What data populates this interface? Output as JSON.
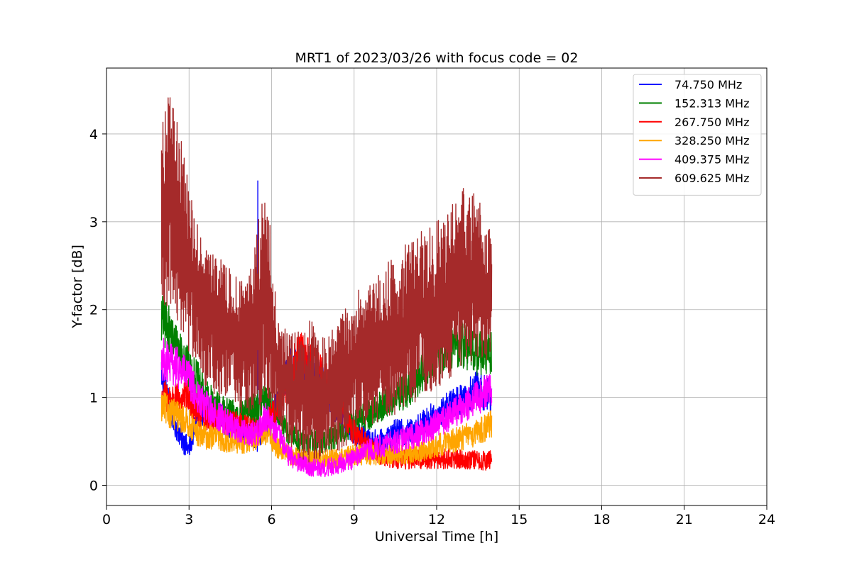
{
  "chart_data": {
    "type": "line",
    "title": "MRT1 of 2023/03/26 with focus code = 02",
    "xlabel": "Universal Time [h]",
    "ylabel": "Y-factor [dB]",
    "xlim": [
      0,
      24
    ],
    "ylim": [
      -0.23,
      4.75
    ],
    "xticks": [
      0,
      3,
      6,
      9,
      12,
      15,
      18,
      21,
      24
    ],
    "yticks": [
      0,
      1,
      2,
      3,
      4
    ],
    "grid": true,
    "legend_position": "top-right",
    "series": [
      {
        "name": " 74.750 MHz",
        "color": "#0000ff",
        "x": [
          2.0,
          2.2,
          2.5,
          2.8,
          3.0,
          3.3,
          3.6,
          4.0,
          4.5,
          5.0,
          5.5,
          5.8,
          6.2,
          6.6,
          7.0,
          7.5,
          8.0,
          8.5,
          9.0,
          9.5,
          10.0,
          10.5,
          11.0,
          11.5,
          12.0,
          12.5,
          13.0,
          13.5,
          14.0
        ],
        "y": [
          1.3,
          1.0,
          0.7,
          0.5,
          0.4,
          0.8,
          0.9,
          0.8,
          0.7,
          0.6,
          0.5,
          0.7,
          0.9,
          1.3,
          1.4,
          1.3,
          1.1,
          0.8,
          0.6,
          0.5,
          0.5,
          0.6,
          0.6,
          0.7,
          0.8,
          0.9,
          1.0,
          1.1,
          1.0
        ],
        "peak_x": 5.5,
        "peak_y": 3.47
      },
      {
        "name": "152.313 MHz",
        "color": "#008000",
        "x": [
          2.0,
          2.2,
          2.5,
          2.8,
          3.0,
          3.3,
          3.6,
          4.0,
          4.5,
          5.0,
          5.5,
          5.8,
          6.2,
          6.6,
          7.0,
          7.5,
          8.0,
          8.5,
          9.0,
          9.5,
          10.0,
          10.5,
          11.0,
          11.5,
          12.0,
          12.5,
          13.0,
          13.5,
          14.0
        ],
        "y": [
          1.9,
          1.8,
          1.6,
          1.5,
          1.3,
          1.2,
          1.0,
          0.9,
          0.8,
          0.8,
          0.9,
          1.0,
          0.8,
          0.6,
          0.5,
          0.5,
          0.5,
          0.6,
          0.7,
          0.8,
          0.9,
          1.0,
          1.1,
          1.3,
          1.5,
          1.6,
          1.6,
          1.5,
          1.5
        ]
      },
      {
        "name": "267.750 MHz",
        "color": "#ff0000",
        "x": [
          2.0,
          2.2,
          2.5,
          2.8,
          3.0,
          3.3,
          3.6,
          4.0,
          4.5,
          5.0,
          5.5,
          5.8,
          6.2,
          6.6,
          7.0,
          7.5,
          8.0,
          8.5,
          9.0,
          9.5,
          10.0,
          10.5,
          11.0,
          11.5,
          12.0,
          12.5,
          13.0,
          13.5,
          14.0
        ],
        "y": [
          1.0,
          1.0,
          0.95,
          1.0,
          1.0,
          0.85,
          0.8,
          0.75,
          0.7,
          0.65,
          0.6,
          0.7,
          0.9,
          1.2,
          1.5,
          1.4,
          1.2,
          0.9,
          0.6,
          0.45,
          0.35,
          0.3,
          0.3,
          0.3,
          0.3,
          0.3,
          0.3,
          0.28,
          0.28
        ]
      },
      {
        "name": "328.250 MHz",
        "color": "#ffa500",
        "x": [
          2.0,
          2.2,
          2.5,
          2.8,
          3.0,
          3.3,
          3.6,
          4.0,
          4.5,
          5.0,
          5.5,
          5.8,
          6.2,
          6.6,
          7.0,
          7.5,
          8.0,
          8.5,
          9.0,
          9.5,
          10.0,
          10.5,
          11.0,
          11.5,
          12.0,
          12.5,
          13.0,
          13.5,
          14.0
        ],
        "y": [
          0.9,
          0.85,
          0.8,
          0.75,
          0.7,
          0.6,
          0.55,
          0.55,
          0.5,
          0.5,
          0.55,
          0.6,
          0.45,
          0.35,
          0.3,
          0.3,
          0.3,
          0.3,
          0.35,
          0.35,
          0.35,
          0.35,
          0.35,
          0.4,
          0.45,
          0.5,
          0.55,
          0.6,
          0.7
        ]
      },
      {
        "name": "409.375 MHz",
        "color": "#ff00ff",
        "x": [
          2.0,
          2.2,
          2.5,
          2.8,
          3.0,
          3.3,
          3.6,
          4.0,
          4.5,
          5.0,
          5.5,
          5.8,
          6.2,
          6.6,
          7.0,
          7.5,
          8.0,
          8.5,
          9.0,
          9.5,
          10.0,
          10.5,
          11.0,
          11.5,
          12.0,
          12.5,
          13.0,
          13.5,
          14.0
        ],
        "y": [
          1.45,
          1.4,
          1.35,
          1.3,
          1.2,
          1.0,
          0.9,
          0.8,
          0.7,
          0.6,
          0.6,
          0.8,
          0.6,
          0.35,
          0.25,
          0.2,
          0.2,
          0.25,
          0.3,
          0.4,
          0.45,
          0.5,
          0.55,
          0.6,
          0.7,
          0.8,
          0.9,
          1.0,
          1.1
        ]
      },
      {
        "name": "609.625 MHz",
        "color": "#a52a2a",
        "x": [
          2.0,
          2.2,
          2.5,
          2.8,
          3.0,
          3.3,
          3.6,
          4.0,
          4.5,
          5.0,
          5.5,
          5.8,
          6.2,
          6.6,
          7.0,
          7.5,
          8.0,
          8.5,
          9.0,
          9.5,
          10.0,
          10.5,
          11.0,
          11.5,
          12.0,
          12.5,
          13.0,
          13.5,
          14.0
        ],
        "y": [
          3.1,
          3.2,
          3.1,
          2.8,
          2.5,
          2.2,
          2.0,
          1.8,
          1.6,
          1.5,
          1.6,
          1.9,
          1.3,
          1.0,
          0.9,
          0.9,
          0.9,
          1.0,
          1.2,
          1.3,
          1.4,
          1.5,
          1.6,
          1.7,
          1.8,
          1.9,
          2.0,
          2.0,
          2.0
        ],
        "envelope_top": [
          4.2,
          4.5,
          4.3,
          3.8,
          3.4,
          3.0,
          2.8,
          2.6,
          2.5,
          2.3,
          3.0,
          3.5,
          2.0,
          1.7,
          1.8,
          1.9,
          1.7,
          1.9,
          2.2,
          2.3,
          2.5,
          2.6,
          2.8,
          2.9,
          3.0,
          3.2,
          3.4,
          3.3,
          2.9
        ],
        "envelope_bottom": [
          2.0,
          2.0,
          1.9,
          1.7,
          1.5,
          1.3,
          1.1,
          1.0,
          0.9,
          0.8,
          0.8,
          0.9,
          0.7,
          0.5,
          0.3,
          0.25,
          0.3,
          0.4,
          0.5,
          0.6,
          0.7,
          0.8,
          0.9,
          1.0,
          1.1,
          1.2,
          1.3,
          1.4,
          1.3
        ]
      }
    ]
  }
}
